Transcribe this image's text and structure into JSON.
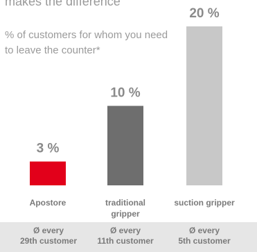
{
  "heading": "makes the difference",
  "chart_data": {
    "type": "bar",
    "title": "% of customers for whom you need to leave the counter*",
    "categories": [
      {
        "lines": [
          "Apostore"
        ]
      },
      {
        "lines": [
          "traditional",
          "gripper"
        ]
      },
      {
        "lines": [
          "suction gripper"
        ]
      }
    ],
    "values": [
      3,
      10,
      20
    ],
    "value_labels": [
      "3 %",
      "10 %",
      "20 %"
    ],
    "colors": [
      "#e2001a",
      "#6e6e6e",
      "#c8c8c8"
    ],
    "ylim": [
      0,
      20
    ],
    "grid": false,
    "legend": "none"
  },
  "footer": {
    "cells": [
      {
        "line1": "Ø every",
        "line2": "29th customer"
      },
      {
        "line1": "Ø every",
        "line2": "11th customer"
      },
      {
        "line1": "Ø every",
        "line2": "5th customer"
      }
    ]
  }
}
